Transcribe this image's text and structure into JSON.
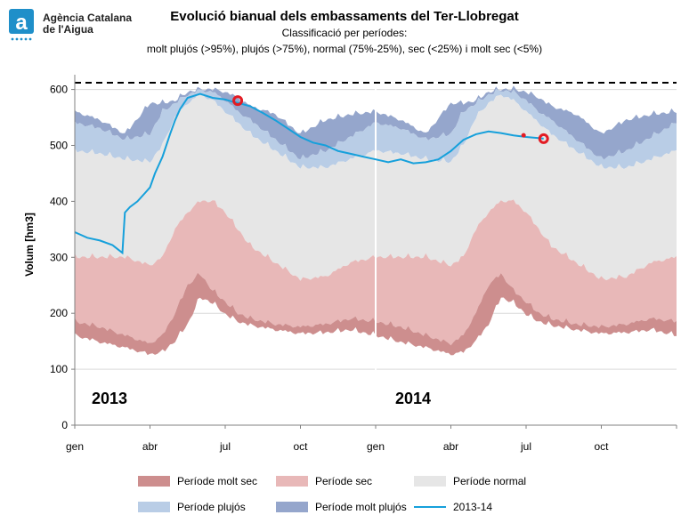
{
  "header": {
    "org": "Agència Catalana\nde l'Aigua",
    "title": "Evolució bianual dels embassaments del Ter-Llobregat",
    "subtitle_line1": "Classificació per períodes:",
    "subtitle_line2": "molt plujós (>95%), plujós (>75%), normal (75%-25%), sec (<25%) i molt sec (<5%)"
  },
  "chart_data": {
    "type": "area",
    "ylabel": "Volum [hm3]",
    "ylim": [
      0,
      620
    ],
    "yticks": [
      0,
      100,
      200,
      300,
      400,
      500,
      600
    ],
    "xticks": [
      "gen",
      "abr",
      "jul",
      "oct",
      "gen",
      "abr",
      "jul",
      "oct"
    ],
    "x_range_months": [
      0,
      24
    ],
    "year_labels": [
      "2013",
      "2014"
    ],
    "capacity_line": 612,
    "band_boundaries_one_year": {
      "months": [
        0,
        1,
        2,
        3,
        3.5,
        4,
        4.5,
        5,
        5.5,
        6,
        6.5,
        7,
        8,
        9,
        10,
        11,
        12
      ],
      "min": [
        160,
        148,
        138,
        126,
        130,
        150,
        180,
        228,
        218,
        198,
        185,
        178,
        170,
        163,
        165,
        170,
        160
      ],
      "p5": [
        185,
        175,
        160,
        145,
        160,
        200,
        250,
        270,
        240,
        220,
        200,
        190,
        180,
        175,
        180,
        190,
        185
      ],
      "p25": [
        300,
        300,
        300,
        285,
        300,
        350,
        380,
        400,
        400,
        380,
        350,
        320,
        290,
        260,
        265,
        290,
        300
      ],
      "p75": [
        490,
        485,
        475,
        470,
        500,
        550,
        575,
        590,
        580,
        560,
        540,
        520,
        490,
        460,
        460,
        475,
        490
      ],
      "p95": [
        540,
        530,
        510,
        520,
        560,
        575,
        590,
        598,
        595,
        580,
        560,
        545,
        510,
        475,
        490,
        515,
        540
      ],
      "max": [
        560,
        545,
        520,
        575,
        575,
        580,
        595,
        600,
        600,
        595,
        585,
        570,
        555,
        520,
        545,
        555,
        560
      ]
    },
    "series": [
      {
        "name": "2013-14",
        "color": "#16a0db",
        "x": [
          0,
          0.5,
          1,
          1.5,
          1.9,
          2.0,
          2.2,
          2.5,
          2.8,
          3.0,
          3.2,
          3.5,
          3.8,
          4.0,
          4.2,
          4.5,
          5.0,
          5.5,
          6.0,
          6.3,
          6.6,
          7.0,
          7.5,
          8.0,
          8.5,
          9.0,
          9.5,
          10.0,
          10.5,
          11.0,
          11.5,
          12.0,
          12.5,
          13.0,
          13.5,
          14.0,
          14.5,
          15.0,
          15.5,
          16.0,
          16.5,
          17.0,
          17.5,
          18.0,
          18.5,
          18.7
        ],
        "y": [
          345,
          335,
          330,
          322,
          308,
          380,
          390,
          400,
          415,
          425,
          450,
          480,
          520,
          545,
          565,
          585,
          592,
          585,
          582,
          578,
          575,
          570,
          558,
          545,
          530,
          515,
          505,
          500,
          490,
          485,
          480,
          475,
          470,
          475,
          468,
          470,
          475,
          490,
          510,
          520,
          525,
          522,
          518,
          515,
          513,
          512
        ]
      }
    ],
    "markers": [
      {
        "x": 6.5,
        "y": 580,
        "style": "ring"
      },
      {
        "x": 17.9,
        "y": 518,
        "style": "dot"
      },
      {
        "x": 18.7,
        "y": 512,
        "style": "ring"
      }
    ]
  },
  "legend": [
    {
      "label": "Període molt sec",
      "color": "#cd8e8e",
      "kind": "area"
    },
    {
      "label": "Període sec",
      "color": "#e8b8b8",
      "kind": "area"
    },
    {
      "label": "Període normal",
      "color": "#e6e6e6",
      "kind": "area"
    },
    {
      "label": "Període plujós",
      "color": "#b9cde6",
      "kind": "area"
    },
    {
      "label": "Període molt plujós",
      "color": "#95a6cc",
      "kind": "area"
    },
    {
      "label": "2013-14",
      "color": "#16a0db",
      "kind": "line"
    }
  ]
}
